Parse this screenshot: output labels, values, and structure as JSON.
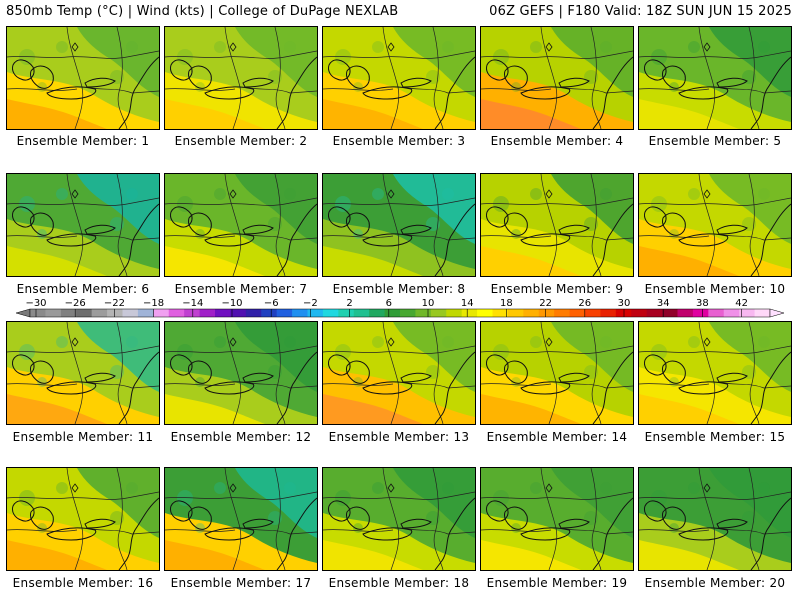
{
  "header": {
    "left": "850mb Temp (°C) | Wind (kts) | College of DuPage NEXLAB",
    "right": "06Z GEFS | F180 Valid: 18Z SUN JUN 15 2025"
  },
  "panels": [
    {
      "caption": "Ensemble Member: 1",
      "base": "#a9cd1c",
      "warm": "#ffd700",
      "hot": "#ffb000",
      "cool": "#5fb230"
    },
    {
      "caption": "Ensemble Member: 2",
      "base": "#a9cd1c",
      "warm": "#f0e400",
      "hot": "#ffd000",
      "cool": "#6ab62a"
    },
    {
      "caption": "Ensemble Member: 3",
      "base": "#c4d800",
      "warm": "#ffd000",
      "hot": "#ffb400",
      "cool": "#6ab62a"
    },
    {
      "caption": "Ensemble Member: 4",
      "base": "#b7d200",
      "warm": "#ffb000",
      "hot": "#ff8c28",
      "cool": "#58ad2e"
    },
    {
      "caption": "Ensemble Member: 5",
      "base": "#6ab62a",
      "warm": "#c8dc00",
      "hot": "#e8e400",
      "cool": "#2f9a3a"
    },
    {
      "caption": "Ensemble Member: 6",
      "base": "#4fa934",
      "warm": "#a9cd1c",
      "hot": "#d4e000",
      "cool": "#17b4a0"
    },
    {
      "caption": "Ensemble Member: 7",
      "base": "#6ab62a",
      "warm": "#c8dc00",
      "hot": "#f5e600",
      "cool": "#3c9e36"
    },
    {
      "caption": "Ensemble Member: 8",
      "base": "#3c9e36",
      "warm": "#8fc220",
      "hot": "#c8dc00",
      "cool": "#1cc0a8"
    },
    {
      "caption": "Ensemble Member: 9",
      "base": "#b7d200",
      "warm": "#e8e400",
      "hot": "#ffd000",
      "cool": "#3c9e36"
    },
    {
      "caption": "Ensemble Member: 10",
      "base": "#c4d800",
      "warm": "#ffd000",
      "hot": "#ffb000",
      "cool": "#6ab62a"
    },
    {
      "caption": "Ensemble Member: 11",
      "base": "#a9cd1c",
      "warm": "#ffd000",
      "hot": "#ffa810",
      "cool": "#2db88a"
    },
    {
      "caption": "Ensemble Member: 12",
      "base": "#4fa934",
      "warm": "#a9cd1c",
      "hot": "#e8e400",
      "cool": "#2f9a3a"
    },
    {
      "caption": "Ensemble Member: 13",
      "base": "#c4d800",
      "warm": "#ffc000",
      "hot": "#ff9a20",
      "cool": "#6ab62a"
    },
    {
      "caption": "Ensemble Member: 14",
      "base": "#b7d200",
      "warm": "#ffd700",
      "hot": "#ffb400",
      "cool": "#6ab62a"
    },
    {
      "caption": "Ensemble Member: 15",
      "base": "#c4d800",
      "warm": "#f5e600",
      "hot": "#ffd000",
      "cool": "#6ab62a"
    },
    {
      "caption": "Ensemble Member: 16",
      "base": "#c4d800",
      "warm": "#ffd000",
      "hot": "#ffb000",
      "cool": "#4fa934"
    },
    {
      "caption": "Ensemble Member: 17",
      "base": "#3c9e36",
      "warm": "#ffd000",
      "hot": "#ffb000",
      "cool": "#1cb894"
    },
    {
      "caption": "Ensemble Member: 18",
      "base": "#58ad2e",
      "warm": "#c8dc00",
      "hot": "#f0e400",
      "cool": "#2f9a3a"
    },
    {
      "caption": "Ensemble Member: 19",
      "base": "#58ad2e",
      "warm": "#c8dc00",
      "hot": "#f5e600",
      "cool": "#3c9e36"
    },
    {
      "caption": "Ensemble Member: 20",
      "base": "#3c9e36",
      "warm": "#a9cd1c",
      "hot": "#e8e400",
      "cool": "#2f9a3a"
    }
  ],
  "colorbar": {
    "labels": [
      "−30",
      "−26",
      "−22",
      "−18",
      "−14",
      "−10",
      "−6",
      "−2",
      "2",
      "6",
      "10",
      "14",
      "18",
      "22",
      "26",
      "30",
      "34",
      "38",
      "42"
    ],
    "colors": [
      "#8a8a8a",
      "#9a9a9a",
      "#808080",
      "#6e6e6e",
      "#9c9c9c",
      "#b4b4b4",
      "#c8c8d8",
      "#a0b4d8",
      "#f0a0f0",
      "#e060e0",
      "#c040d0",
      "#a020c8",
      "#7010c0",
      "#5010b0",
      "#3020a8",
      "#2040c0",
      "#2060e0",
      "#2090f0",
      "#20b8f0",
      "#20d8e0",
      "#20d0b0",
      "#20c090",
      "#20a860",
      "#309c38",
      "#48a830",
      "#70b828",
      "#98c820",
      "#c0d800",
      "#e8e800",
      "#ffff00",
      "#ffe000",
      "#ffc800",
      "#ffb000",
      "#ff9800",
      "#ff7c00",
      "#ff6000",
      "#f84000",
      "#e82000",
      "#d80000",
      "#c00010",
      "#a80020",
      "#900028",
      "#c0006c",
      "#e000a0",
      "#e860d0",
      "#f090e8",
      "#f8b8f0",
      "#ffd8f8"
    ]
  }
}
